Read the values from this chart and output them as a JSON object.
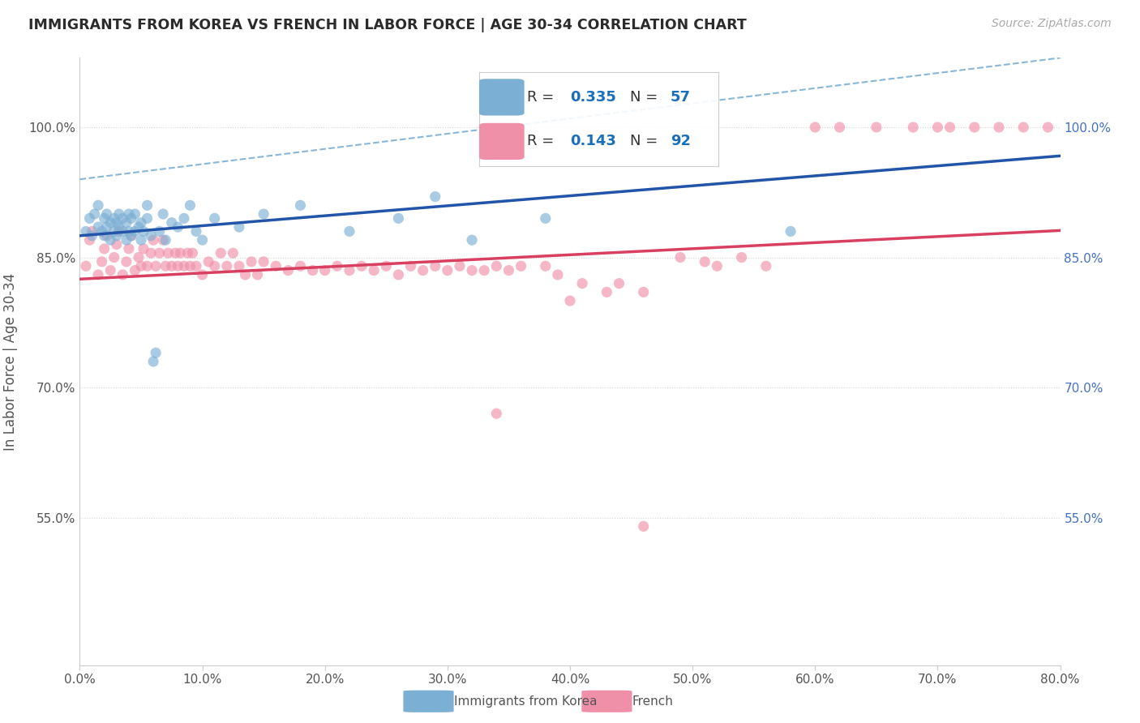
{
  "title": "IMMIGRANTS FROM KOREA VS FRENCH IN LABOR FORCE | AGE 30-34 CORRELATION CHART",
  "source": "Source: ZipAtlas.com",
  "ylabel": "In Labor Force | Age 30-34",
  "legend_korea": "Immigrants from Korea",
  "legend_french": "French",
  "xmin": 0.0,
  "xmax": 0.8,
  "ymin": 0.38,
  "ymax": 1.08,
  "yticks": [
    0.55,
    0.7,
    0.85,
    1.0
  ],
  "ytick_labels": [
    "55.0%",
    "70.0%",
    "85.0%",
    "100.0%"
  ],
  "xticks": [
    0.0,
    0.1,
    0.2,
    0.3,
    0.4,
    0.5,
    0.6,
    0.7,
    0.8
  ],
  "xtick_labels": [
    "0.0%",
    "10.0%",
    "20.0%",
    "30.0%",
    "40.0%",
    "50.0%",
    "60.0%",
    "70.0%",
    "80.0%"
  ],
  "title_color": "#2b2b2b",
  "axis_label_color": "#555555",
  "tick_color": "#555555",
  "right_axis_color": "#4472c4",
  "grid_color": "#d0d0d0",
  "korea_color": "#7bafd4",
  "french_color": "#f090a8",
  "korea_line_color": "#2255aa",
  "french_line_color": "#d94060",
  "korea_ci_color": "#88b8e0",
  "r_color": "#1a6fbb",
  "korea_points_x": [
    0.005,
    0.008,
    0.01,
    0.012,
    0.015,
    0.015,
    0.018,
    0.02,
    0.02,
    0.022,
    0.022,
    0.025,
    0.025,
    0.028,
    0.028,
    0.03,
    0.03,
    0.032,
    0.032,
    0.035,
    0.035,
    0.038,
    0.038,
    0.04,
    0.04,
    0.042,
    0.042,
    0.045,
    0.045,
    0.048,
    0.05,
    0.05,
    0.052,
    0.055,
    0.055,
    0.058,
    0.06,
    0.062,
    0.065,
    0.068,
    0.07,
    0.075,
    0.08,
    0.085,
    0.09,
    0.095,
    0.1,
    0.11,
    0.13,
    0.15,
    0.18,
    0.22,
    0.26,
    0.29,
    0.32,
    0.38,
    0.58
  ],
  "korea_points_y": [
    0.88,
    0.895,
    0.875,
    0.9,
    0.885,
    0.91,
    0.88,
    0.875,
    0.895,
    0.885,
    0.9,
    0.87,
    0.89,
    0.88,
    0.895,
    0.875,
    0.89,
    0.885,
    0.9,
    0.88,
    0.895,
    0.87,
    0.89,
    0.88,
    0.9,
    0.875,
    0.895,
    0.88,
    0.9,
    0.885,
    0.87,
    0.89,
    0.88,
    0.895,
    0.91,
    0.875,
    0.73,
    0.74,
    0.88,
    0.9,
    0.87,
    0.89,
    0.885,
    0.895,
    0.91,
    0.88,
    0.87,
    0.895,
    0.885,
    0.9,
    0.91,
    0.88,
    0.895,
    0.92,
    0.87,
    0.895,
    0.88
  ],
  "french_points_x": [
    0.005,
    0.008,
    0.01,
    0.015,
    0.018,
    0.02,
    0.022,
    0.025,
    0.028,
    0.03,
    0.032,
    0.035,
    0.038,
    0.04,
    0.042,
    0.045,
    0.048,
    0.05,
    0.052,
    0.055,
    0.058,
    0.06,
    0.062,
    0.065,
    0.068,
    0.07,
    0.072,
    0.075,
    0.078,
    0.08,
    0.082,
    0.085,
    0.088,
    0.09,
    0.092,
    0.095,
    0.1,
    0.105,
    0.11,
    0.115,
    0.12,
    0.125,
    0.13,
    0.135,
    0.14,
    0.145,
    0.15,
    0.16,
    0.17,
    0.18,
    0.19,
    0.2,
    0.21,
    0.22,
    0.23,
    0.24,
    0.25,
    0.26,
    0.27,
    0.28,
    0.29,
    0.3,
    0.31,
    0.32,
    0.33,
    0.34,
    0.35,
    0.36,
    0.38,
    0.39,
    0.4,
    0.41,
    0.43,
    0.44,
    0.46,
    0.49,
    0.51,
    0.52,
    0.54,
    0.56,
    0.6,
    0.62,
    0.65,
    0.68,
    0.7,
    0.71,
    0.73,
    0.75,
    0.77,
    0.79,
    0.34,
    0.46
  ],
  "french_points_y": [
    0.84,
    0.87,
    0.88,
    0.83,
    0.845,
    0.86,
    0.875,
    0.835,
    0.85,
    0.865,
    0.88,
    0.83,
    0.845,
    0.86,
    0.875,
    0.835,
    0.85,
    0.84,
    0.86,
    0.84,
    0.855,
    0.87,
    0.84,
    0.855,
    0.87,
    0.84,
    0.855,
    0.84,
    0.855,
    0.84,
    0.855,
    0.84,
    0.855,
    0.84,
    0.855,
    0.84,
    0.83,
    0.845,
    0.84,
    0.855,
    0.84,
    0.855,
    0.84,
    0.83,
    0.845,
    0.83,
    0.845,
    0.84,
    0.835,
    0.84,
    0.835,
    0.835,
    0.84,
    0.835,
    0.84,
    0.835,
    0.84,
    0.83,
    0.84,
    0.835,
    0.84,
    0.835,
    0.84,
    0.835,
    0.835,
    0.84,
    0.835,
    0.84,
    0.84,
    0.83,
    0.8,
    0.82,
    0.81,
    0.82,
    0.81,
    0.85,
    0.845,
    0.84,
    0.85,
    0.84,
    1.0,
    1.0,
    1.0,
    1.0,
    1.0,
    1.0,
    1.0,
    1.0,
    1.0,
    1.0,
    0.67,
    0.54
  ]
}
